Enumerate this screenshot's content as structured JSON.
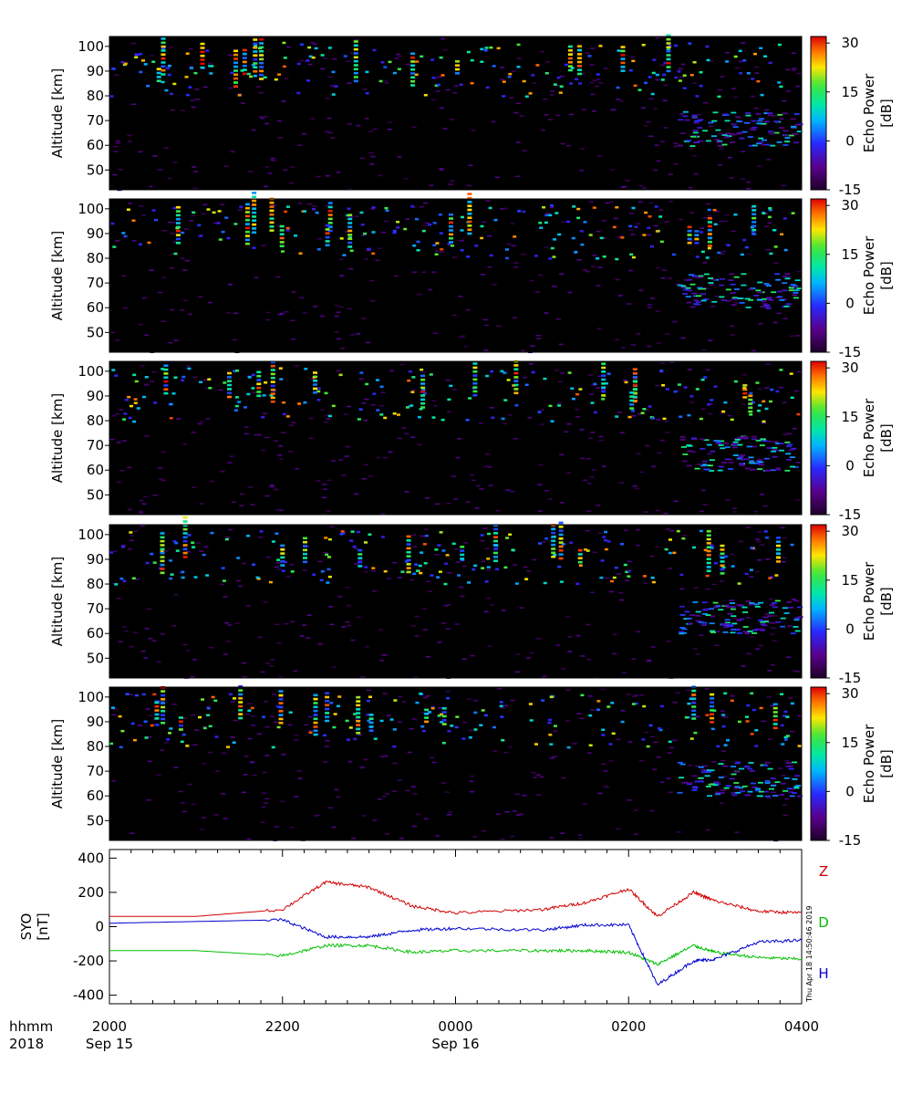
{
  "echo_panels": {
    "ylabel": "Altitude [km]",
    "yticks": [
      "100",
      "90",
      "80",
      "70",
      "60",
      "50"
    ],
    "colorbar_label_1": "Echo Power",
    "colorbar_label_2": "[dB]",
    "colorbar_ticks": [
      "30",
      "15",
      "0",
      "-15"
    ],
    "count": 5
  },
  "mag_panel": {
    "ylabel_1": "SYO",
    "ylabel_2": "[nT]",
    "yticks": [
      "400",
      "200",
      "0",
      "-200",
      "-400"
    ],
    "series_labels": {
      "z": "Z",
      "d": "D",
      "h": "H"
    },
    "colors": {
      "z": "#d00000",
      "d": "#00c000",
      "h": "#0000d0"
    },
    "timestamp": "Thu Apr 18 14:50:46 2019"
  },
  "time_axis": {
    "row1_label": "hhmm",
    "row2_label": "2018",
    "ticks": [
      "2000",
      "2200",
      "0000",
      "0200",
      "0400"
    ],
    "date1": "Sep 15",
    "date2": "Sep 16"
  },
  "chart_data": [
    {
      "type": "heatmap",
      "description_units": "echo power in dB vs time (hhmm) and altitude (km)",
      "x_range": [
        "2000 Sep 15",
        "0400 Sep 16"
      ],
      "ylim": [
        42,
        104
      ],
      "ylabel": "Altitude [km]",
      "zlim": [
        -15,
        32
      ],
      "zlabel": "Echo Power [dB]",
      "panels": 5
    },
    {
      "type": "line",
      "ylabel": "SYO [nT]",
      "ylim": [
        -450,
        450
      ],
      "x": [
        "2000",
        "2100",
        "2200",
        "2230",
        "2300",
        "2330",
        "0000",
        "0100",
        "0130",
        "0200",
        "0220",
        "0245",
        "0300",
        "0330",
        "0400"
      ],
      "series": [
        {
          "name": "Z",
          "values": [
            60,
            60,
            100,
            260,
            230,
            120,
            80,
            100,
            140,
            220,
            60,
            200,
            150,
            90,
            80
          ]
        },
        {
          "name": "D",
          "values": [
            -140,
            -140,
            -170,
            -110,
            -110,
            -150,
            -140,
            -140,
            -140,
            -150,
            -220,
            -110,
            -150,
            -180,
            -190
          ]
        },
        {
          "name": "H",
          "values": [
            20,
            30,
            40,
            -60,
            -60,
            -20,
            -10,
            -20,
            10,
            10,
            -340,
            -200,
            -190,
            -90,
            -80
          ]
        }
      ]
    }
  ]
}
